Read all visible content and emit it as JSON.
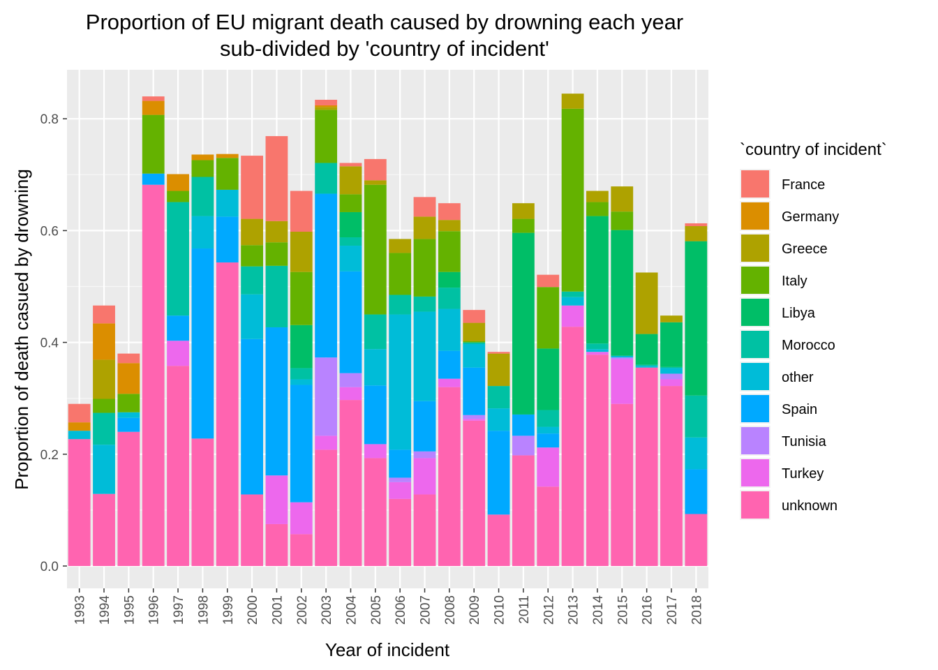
{
  "chart_data": {
    "type": "bar",
    "stacked": true,
    "title": "Proportion of EU migrant death caused by drowning each year",
    "subtitle": "sub-divided by 'country of incident'",
    "xlabel": "Year of incident",
    "ylabel": "Proportion of death casued by drowning",
    "ylim": [
      0,
      0.88
    ],
    "yticks": [
      "0.0",
      "0.2",
      "0.4",
      "0.6",
      "0.8"
    ],
    "grid": true,
    "legend": {
      "title": "`country of incident`",
      "position": "right"
    },
    "categories": [
      "1993",
      "1994",
      "1995",
      "1996",
      "1997",
      "1998",
      "1999",
      "2000",
      "2001",
      "2002",
      "2003",
      "2004",
      "2005",
      "2006",
      "2007",
      "2008",
      "2009",
      "2010",
      "2011",
      "2012",
      "2013",
      "2014",
      "2015",
      "2016",
      "2017",
      "2018"
    ],
    "series": [
      {
        "name": "unknown",
        "color": "#FF64B0",
        "values": [
          0.227,
          0.129,
          0.24,
          0.682,
          0.358,
          0.228,
          0.543,
          0.128,
          0.075,
          0.057,
          0.208,
          0.297,
          0.193,
          0.12,
          0.128,
          0.32,
          0.26,
          0.092,
          0.198,
          0.142,
          0.428,
          0.378,
          0.29,
          0.355,
          0.322,
          0.093
        ]
      },
      {
        "name": "Turkey",
        "color": "#ED68ED",
        "values": [
          0,
          0,
          0,
          0,
          0.045,
          0,
          0,
          0,
          0.087,
          0.057,
          0.025,
          0.023,
          0.025,
          0.03,
          0.065,
          0.015,
          0.003,
          0,
          0,
          0.07,
          0.038,
          0.005,
          0.08,
          0,
          0.012,
          0
        ]
      },
      {
        "name": "Tunisia",
        "color": "#B983FF",
        "values": [
          0,
          0,
          0,
          0,
          0,
          0,
          0,
          0,
          0,
          0,
          0.14,
          0.025,
          0,
          0.008,
          0.012,
          0,
          0.007,
          0,
          0.035,
          0,
          0,
          0,
          0.003,
          0,
          0.01,
          0
        ]
      },
      {
        "name": "Spain",
        "color": "#00A9FF",
        "values": [
          0,
          0,
          0.025,
          0.02,
          0.045,
          0.34,
          0.082,
          0.278,
          0.265,
          0.21,
          0.293,
          0.182,
          0.105,
          0.05,
          0.09,
          0.05,
          0.085,
          0.15,
          0.038,
          0.025,
          0,
          0,
          0,
          0,
          0,
          0.08
        ]
      },
      {
        "name": "other",
        "color": "#00BCD8",
        "values": [
          0.015,
          0.088,
          0.01,
          0,
          0,
          0.058,
          0.048,
          0.08,
          0,
          0.01,
          0,
          0.046,
          0.065,
          0.242,
          0.16,
          0.075,
          0.042,
          0.04,
          0,
          0.012,
          0.015,
          0.005,
          0.003,
          0.003,
          0.01,
          0.057
        ]
      },
      {
        "name": "Morocco",
        "color": "#00C1A3",
        "values": [
          0,
          0.057,
          0,
          0,
          0.203,
          0.07,
          0,
          0.05,
          0.11,
          0.02,
          0.055,
          0.015,
          0.062,
          0.035,
          0.027,
          0.038,
          0.003,
          0.04,
          0,
          0.03,
          0.01,
          0.01,
          0,
          0.002,
          0.002,
          0.075
        ]
      },
      {
        "name": "Libya",
        "color": "#00BE67",
        "values": [
          0,
          0,
          0,
          0,
          0,
          0,
          0,
          0,
          0,
          0.077,
          0,
          0.045,
          0,
          0,
          0,
          0.028,
          0,
          0,
          0.325,
          0.11,
          0,
          0.228,
          0.225,
          0.055,
          0.08,
          0.276
        ]
      },
      {
        "name": "Italy",
        "color": "#64B200",
        "values": [
          0,
          0.025,
          0.033,
          0.105,
          0.02,
          0.03,
          0.057,
          0.038,
          0.042,
          0.095,
          0.095,
          0.032,
          0.232,
          0.075,
          0.103,
          0.073,
          0.002,
          0,
          0.025,
          0.11,
          0.327,
          0.025,
          0.033,
          0,
          0,
          0
        ]
      },
      {
        "name": "Greece",
        "color": "#AEA200",
        "values": [
          0,
          0.07,
          0,
          0,
          0,
          0,
          0,
          0.047,
          0.038,
          0.072,
          0.005,
          0.05,
          0.008,
          0.025,
          0.04,
          0.02,
          0.033,
          0.058,
          0.028,
          0,
          0.027,
          0.02,
          0.045,
          0.11,
          0.012,
          0.027
        ]
      },
      {
        "name": "Germany",
        "color": "#DB8E00",
        "values": [
          0.015,
          0.065,
          0.055,
          0.025,
          0.03,
          0.01,
          0.007,
          0,
          0,
          0,
          0.003,
          0,
          0,
          0,
          0,
          0,
          0,
          0,
          0,
          0,
          0,
          0,
          0,
          0,
          0,
          0
        ]
      },
      {
        "name": "France",
        "color": "#F8766D",
        "values": [
          0.033,
          0.032,
          0.017,
          0.008,
          0,
          0,
          0,
          0.113,
          0.152,
          0.073,
          0.01,
          0.006,
          0.038,
          0,
          0.035,
          0.03,
          0.023,
          0.003,
          0,
          0.022,
          0,
          0,
          0,
          0,
          0,
          0.005
        ]
      }
    ],
    "legend_order": [
      "France",
      "Germany",
      "Greece",
      "Italy",
      "Libya",
      "Morocco",
      "other",
      "Spain",
      "Tunisia",
      "Turkey",
      "unknown"
    ]
  }
}
